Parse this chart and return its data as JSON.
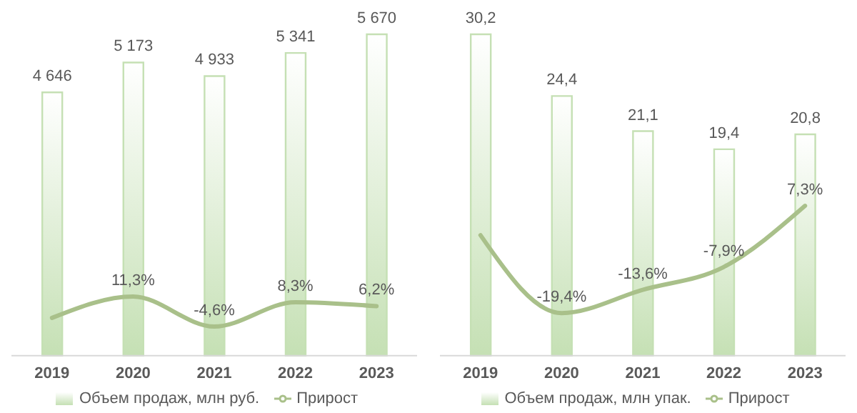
{
  "chart_data": [
    {
      "type": "bar",
      "categories": [
        "2019",
        "2020",
        "2021",
        "2022",
        "2023"
      ],
      "series": [
        {
          "name": "Объем продаж, млн руб.",
          "color": "#c5e0b4",
          "values": [
            4646,
            5173,
            4933,
            5341,
            5670
          ],
          "value_labels": [
            "4 646",
            "5 173",
            "4 933",
            "5 341",
            "5 670"
          ]
        },
        {
          "name": "Прирост",
          "type": "line",
          "axis": "y2",
          "color": "#a9c08a",
          "values": [
            0,
            11.3,
            -4.6,
            8.3,
            6.2
          ],
          "value_labels": [
            null,
            "11,3%",
            "-4,6%",
            "8,3%",
            "6,2%"
          ]
        }
      ],
      "y2lim": [
        -20,
        150
      ],
      "tick_labels": "x",
      "legend": "bottom",
      "grid": false
    },
    {
      "type": "bar",
      "categories": [
        "2019",
        "2020",
        "2021",
        "2022",
        "2023"
      ],
      "series": [
        {
          "name": "Объем продаж, млн упак.",
          "color": "#c5e0b4",
          "values": [
            30.2,
            24.4,
            21.1,
            19.4,
            20.8
          ],
          "value_labels": [
            "30,2",
            "24,4",
            "21,1",
            "19,4",
            "20,8"
          ]
        },
        {
          "name": "Прирост",
          "type": "line",
          "axis": "y2",
          "color": "#a9c08a",
          "values": [
            0,
            -19.4,
            -13.6,
            -7.9,
            7.3
          ],
          "value_labels": [
            null,
            "-19,4%",
            "-13,6%",
            "-7,9%",
            "7,3%"
          ]
        }
      ],
      "y2lim": [
        -30,
        50
      ],
      "tick_labels": "x",
      "legend": "bottom",
      "grid": false
    }
  ]
}
